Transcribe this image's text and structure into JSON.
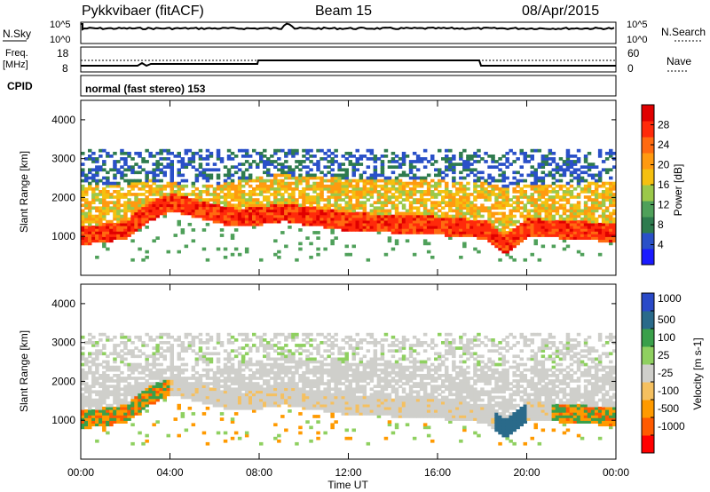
{
  "header": {
    "station": "Pykkvibaer (fitACF)",
    "beam": "Beam 15",
    "date": "08/Apr/2015"
  },
  "strips": {
    "nsky": {
      "label": "N.Sky",
      "ticks": [
        "10^5",
        "10^0"
      ]
    },
    "nsearch": {
      "label": "N.Search",
      "ticks": [
        "10^5",
        "10^0"
      ]
    },
    "freq": {
      "label_top": "Freq.",
      "label_unit": "[MHz]",
      "ticks": [
        "18",
        "8"
      ]
    },
    "nave": {
      "label": "Nave",
      "ticks": [
        "60",
        "0"
      ]
    },
    "cpid": {
      "label": "CPID",
      "value": "normal (fast stereo) 153"
    }
  },
  "colors": {
    "power": [
      "#1a1aff",
      "#2a50c8",
      "#2e7b4e",
      "#4fa05a",
      "#9bc84a",
      "#f5c010",
      "#ff9a10",
      "#ff6a10",
      "#ff2a0a",
      "#e00000"
    ],
    "velocity": [
      "#ff0000",
      "#ff5a00",
      "#ff9a00",
      "#f5c060",
      "#cfcfcb",
      "#8fd060",
      "#3aa04a",
      "#2a6a8a",
      "#2a4ac8"
    ]
  },
  "chart_data": [
    {
      "type": "heatmap",
      "title": "Power",
      "ylabel": "Slant Range [km]",
      "ylim": [
        0,
        4500
      ],
      "yticks": [
        "1000",
        "2000",
        "3000",
        "4000"
      ],
      "xlim": [
        "00:00",
        "24:00"
      ],
      "colorbar": {
        "label": "Power [dB]",
        "ticks": [
          "4",
          "8",
          "12",
          "16",
          "20",
          "24",
          "28"
        ],
        "range": [
          0,
          32
        ]
      },
      "profile": [
        {
          "x": 0,
          "strong": 1000,
          "outer": 2300
        },
        {
          "x": 1,
          "strong": 1050,
          "outer": 2300
        },
        {
          "x": 2,
          "strong": 1150,
          "outer": 2300
        },
        {
          "x": 3,
          "strong": 1600,
          "outer": 2400
        },
        {
          "x": 4,
          "strong": 1850,
          "outer": 2350
        },
        {
          "x": 5,
          "strong": 1700,
          "outer": 2250
        },
        {
          "x": 6,
          "strong": 1550,
          "outer": 2300
        },
        {
          "x": 7,
          "strong": 1450,
          "outer": 2400
        },
        {
          "x": 8,
          "strong": 1500,
          "outer": 2500
        },
        {
          "x": 9,
          "strong": 1600,
          "outer": 2550
        },
        {
          "x": 10,
          "strong": 1500,
          "outer": 2500
        },
        {
          "x": 12,
          "strong": 1350,
          "outer": 2450
        },
        {
          "x": 14,
          "strong": 1300,
          "outer": 2400
        },
        {
          "x": 16,
          "strong": 1250,
          "outer": 2400
        },
        {
          "x": 18,
          "strong": 1150,
          "outer": 2350
        },
        {
          "x": 19,
          "strong": 750,
          "outer": 2200
        },
        {
          "x": 20,
          "strong": 1200,
          "outer": 2300
        },
        {
          "x": 22,
          "strong": 1150,
          "outer": 2300
        },
        {
          "x": 24,
          "strong": 1050,
          "outer": 2400
        }
      ]
    },
    {
      "type": "heatmap",
      "title": "Velocity",
      "ylabel": "Slant Range [km]",
      "ylim": [
        0,
        4500
      ],
      "yticks": [
        "1000",
        "2000",
        "3000",
        "4000"
      ],
      "xlabel": "Time UT",
      "xticks": [
        "00:00",
        "04:00",
        "08:00",
        "12:00",
        "16:00",
        "20:00",
        "00:00"
      ],
      "colorbar": {
        "label": "Velocity [m s-1]",
        "ticks": [
          "1000",
          "500",
          "100",
          "25",
          "-25",
          "-100",
          "-500",
          "-1000"
        ]
      }
    }
  ]
}
